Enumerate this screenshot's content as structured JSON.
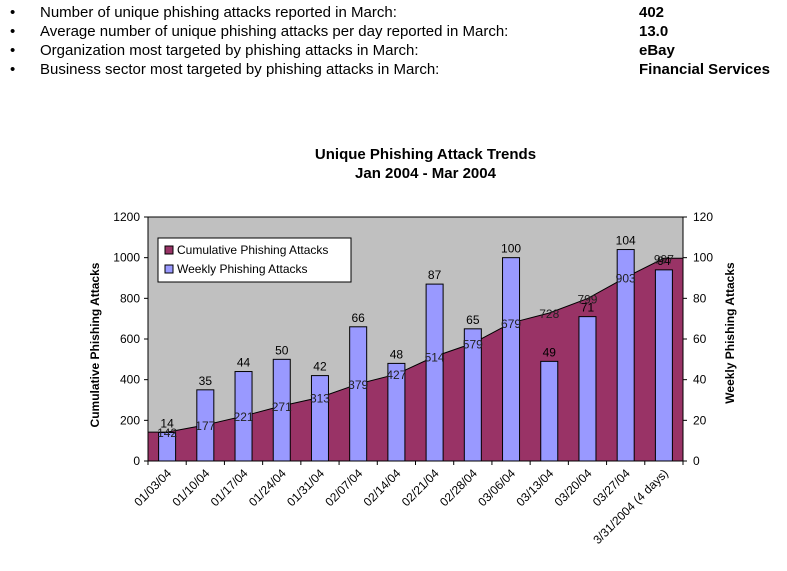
{
  "summary": [
    {
      "bullet": "•",
      "label": "Number of unique phishing attacks reported in March:",
      "value": "402"
    },
    {
      "bullet": "•",
      "label": "Average number of unique phishing attacks per day reported in March:",
      "value": "13.0"
    },
    {
      "bullet": "•",
      "label": "Organization most targeted by phishing attacks in March:",
      "value": "eBay"
    },
    {
      "bullet": "•",
      "label": "Business sector most targeted by phishing attacks in March:",
      "value": "Financial Services"
    }
  ],
  "chart_data": {
    "type": "bar+area",
    "title": "Unique Phishing Attack Trends",
    "subtitle": "Jan 2004 - Mar 2004",
    "categories": [
      "01/03/04",
      "01/10/04",
      "01/17/04",
      "01/24/04",
      "01/31/04",
      "02/07/04",
      "02/14/04",
      "02/21/04",
      "02/28/04",
      "03/06/04",
      "03/13/04",
      "03/20/04",
      "03/27/04",
      "3/31/2004 (4 days)"
    ],
    "series": [
      {
        "name": "Cumulative Phishing Attacks",
        "type": "area",
        "axis": "left",
        "color": "#993366",
        "values": [
          142,
          177,
          221,
          271,
          313,
          379,
          427,
          514,
          579,
          679,
          728,
          799,
          903,
          997
        ],
        "labels": [
          "142",
          "177",
          "221",
          "271",
          "313",
          "379",
          "427",
          "514",
          "579",
          "679",
          "728",
          "799",
          "903",
          "997"
        ]
      },
      {
        "name": "Weekly Phishing Attacks",
        "type": "bar",
        "axis": "right",
        "color": "#9999ff",
        "values": [
          14,
          35,
          44,
          50,
          42,
          66,
          48,
          87,
          65,
          100,
          49,
          71,
          104,
          94
        ],
        "labels": [
          "14",
          "35",
          "44",
          "50",
          "42",
          "66",
          "48",
          "87",
          "65",
          "100",
          "49",
          "71",
          "104",
          "94"
        ]
      }
    ],
    "ylabel": "Cumulative Phishing Attacks",
    "ylabel_right": "Weekly Phishing Attacks",
    "ylim": [
      0,
      1200
    ],
    "ylim_right": [
      0,
      120
    ],
    "yticks": [
      "0",
      "200",
      "400",
      "600",
      "800",
      "1000",
      "1200"
    ],
    "yticks_right": [
      "0",
      "20",
      "40",
      "60",
      "80",
      "100",
      "120"
    ],
    "plot_background": "#c0c0c0",
    "grid": false,
    "legend_position": "top-left"
  }
}
